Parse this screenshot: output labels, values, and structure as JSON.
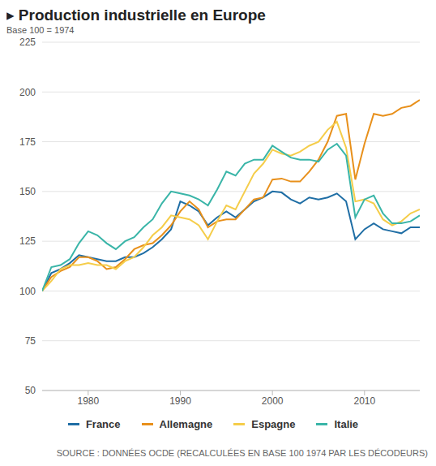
{
  "chart_data": {
    "type": "line",
    "title": "▸ Production industrielle en Europe",
    "subtitle": "Base 100 = 1974",
    "source": "SOURCE : DONNÉES OCDE (RECALCULÉES EN BASE 100 1974 PAR LES DÉCODEURS)",
    "x": [
      1975,
      1976,
      1977,
      1978,
      1979,
      1980,
      1981,
      1982,
      1983,
      1984,
      1985,
      1986,
      1987,
      1988,
      1989,
      1990,
      1991,
      1992,
      1993,
      1994,
      1995,
      1996,
      1997,
      1998,
      1999,
      2000,
      2001,
      2002,
      2003,
      2004,
      2005,
      2006,
      2007,
      2008,
      2009,
      2010,
      2011,
      2012,
      2013,
      2014,
      2015,
      2016
    ],
    "series": [
      {
        "name": "France",
        "color": "#1f6ea5",
        "values": [
          100,
          109,
          111,
          114,
          118,
          117,
          116,
          115,
          115,
          117,
          117,
          119,
          122,
          126,
          131,
          145,
          143,
          140,
          133,
          137,
          140,
          137,
          141,
          145,
          147,
          150,
          149.5,
          146,
          144,
          147,
          146,
          147,
          149,
          145,
          126,
          131,
          134,
          131,
          130,
          129,
          132,
          132
        ]
      },
      {
        "name": "Allemagne",
        "color": "#e8901b",
        "values": [
          100,
          107,
          110,
          112,
          117,
          117,
          115,
          111,
          112,
          116,
          121,
          123,
          124,
          128,
          133,
          140,
          145,
          141,
          132,
          135,
          136,
          136,
          141,
          146,
          147,
          156,
          156.5,
          155,
          155,
          160,
          166,
          175,
          188,
          189,
          156,
          174,
          189,
          188,
          189,
          192,
          193,
          196
        ]
      },
      {
        "name": "Espagne",
        "color": "#f5cd4a",
        "values": [
          100,
          105,
          111,
          113,
          113,
          114,
          113,
          113,
          111,
          115,
          117,
          122,
          128,
          132,
          138,
          137,
          136,
          133,
          126,
          135,
          143,
          141,
          150,
          159,
          164,
          171,
          169,
          168,
          170,
          173,
          175,
          181,
          185,
          172,
          145,
          146,
          144,
          136,
          133,
          135,
          139,
          141
        ]
      },
      {
        "name": "Italie",
        "color": "#3ab5a8",
        "values": [
          100,
          112,
          113,
          116,
          124,
          130,
          128,
          124,
          121,
          125,
          127,
          132,
          136,
          144,
          150,
          149,
          148,
          146,
          143,
          151,
          160,
          158,
          164,
          166,
          166,
          173,
          170,
          167,
          166,
          166,
          165,
          171,
          174,
          168,
          137,
          146,
          148,
          139,
          134,
          134,
          135,
          138
        ]
      }
    ],
    "xlim": [
      1975,
      2016
    ],
    "xticks": [
      1980,
      1990,
      2000,
      2010
    ],
    "ylim": [
      50,
      225
    ],
    "yticks": [
      50,
      75,
      100,
      125,
      150,
      175,
      200,
      225
    ],
    "grid": true,
    "legend": "bottom"
  }
}
